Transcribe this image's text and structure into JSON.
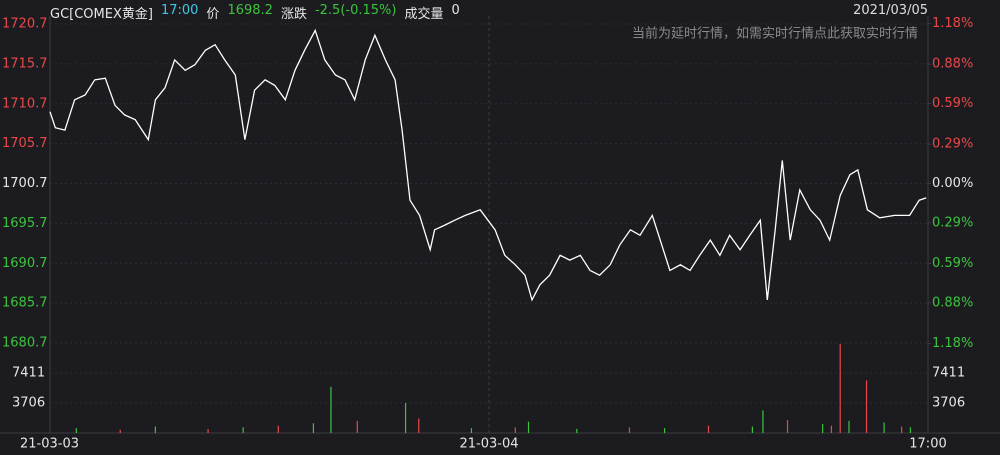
{
  "chart_data": {
    "type": "line",
    "header": [
      {
        "text": "GC[COMEX黄金]",
        "color": "#e6e6e6"
      },
      {
        "text": "17:00",
        "color": "#3ec8e8"
      },
      {
        "text": "价",
        "color": "#e6e6e6"
      },
      {
        "text": "1698.2",
        "color": "#3cc43c"
      },
      {
        "text": "涨跌",
        "color": "#e6e6e6"
      },
      {
        "text": "-2.5(-0.15%)",
        "color": "#3cc43c"
      },
      {
        "text": "成交量",
        "color": "#e6e6e6"
      },
      {
        "text": "0",
        "color": "#e6e6e6"
      }
    ],
    "date": "2021/03/05",
    "notice": "当前为延时行情，如需实时行情点此获取实时行情",
    "color": "#ffffff",
    "x": [
      0,
      0.6,
      1.7,
      2.8,
      4.0,
      5.1,
      6.3,
      7.4,
      8.5,
      9.7,
      11.2,
      12.0,
      13.1,
      14.2,
      15.4,
      16.5,
      17.7,
      18.8,
      19.9,
      21.1,
      22.2,
      23.3,
      24.5,
      25.6,
      26.8,
      27.9,
      29.0,
      30.2,
      31.3,
      32.5,
      33.6,
      34.7,
      35.9,
      37.0,
      38.2,
      39.3,
      40.1,
      41.0,
      42.1,
      43.3,
      43.8,
      45.0,
      46.1,
      47.3,
      49.0,
      50.7,
      51.8,
      53.0,
      54.1,
      54.9,
      55.8,
      56.9,
      58.1,
      59.2,
      60.4,
      61.5,
      62.6,
      63.8,
      64.9,
      66.1,
      67.2,
      68.6,
      69.5,
      70.6,
      71.8,
      72.9,
      74.0,
      75.2,
      76.3,
      77.4,
      78.6,
      79.7,
      80.9,
      81.7,
      82.6,
      83.4,
      84.3,
      85.4,
      86.6,
      87.7,
      88.8,
      90.0,
      91.1,
      92.0,
      93.1,
      94.5,
      96.2,
      97.9,
      99.0,
      99.8
    ],
    "values": [
      1709.7,
      1707.7,
      1707.4,
      1711.2,
      1711.8,
      1713.7,
      1713.9,
      1710.5,
      1709.3,
      1708.7,
      1706.2,
      1711.2,
      1712.7,
      1716.2,
      1714.9,
      1715.6,
      1717.4,
      1718.1,
      1716.2,
      1714.3,
      1706.2,
      1712.4,
      1713.7,
      1713.0,
      1711.2,
      1714.9,
      1717.4,
      1719.9,
      1716.2,
      1714.3,
      1713.7,
      1711.2,
      1716.2,
      1719.3,
      1716.2,
      1713.7,
      1707.4,
      1698.6,
      1696.7,
      1692.4,
      1694.9,
      1695.5,
      1696.1,
      1696.7,
      1697.4,
      1694.9,
      1691.7,
      1690.5,
      1689.2,
      1686.1,
      1688.0,
      1689.2,
      1691.7,
      1691.1,
      1691.7,
      1689.8,
      1689.2,
      1690.5,
      1693.0,
      1694.9,
      1694.2,
      1696.7,
      1693.6,
      1689.8,
      1690.5,
      1689.8,
      1691.7,
      1693.6,
      1691.7,
      1694.2,
      1692.4,
      1694.2,
      1696.1,
      1686.1,
      1694.9,
      1703.6,
      1693.6,
      1699.9,
      1697.4,
      1696.1,
      1693.6,
      1699.2,
      1701.8,
      1702.4,
      1697.4,
      1696.4,
      1696.7,
      1696.7,
      1698.6,
      1698.9
    ],
    "xlim": [
      0,
      100
    ],
    "xticks": [
      {
        "value": 0,
        "label": "21-03-03"
      },
      {
        "value": 50,
        "label": "21-03-04"
      },
      {
        "value": 100,
        "label": "17:00"
      }
    ],
    "ylim": [
      1680.7,
      1720.7
    ],
    "yticks": [
      1720.7,
      1715.7,
      1710.7,
      1705.7,
      1700.7,
      1695.7,
      1690.7,
      1685.7,
      1680.7
    ],
    "y2lim": [
      -1.176,
      1.176
    ],
    "y2ticks": [
      {
        "value": 1.18,
        "label": "1.18%"
      },
      {
        "value": 0.88,
        "label": "0.88%"
      },
      {
        "value": 0.59,
        "label": "0.59%"
      },
      {
        "value": 0.29,
        "label": "0.29%"
      },
      {
        "value": 0,
        "label": "0.00%"
      },
      {
        "value": -0.29,
        "label": "0.29%"
      },
      {
        "value": -0.59,
        "label": "0.59%"
      },
      {
        "value": -0.88,
        "label": "0.88%"
      },
      {
        "value": -1.18,
        "label": "1.18%"
      }
    ],
    "up_color": "#e84848",
    "down_color": "#3cc43c",
    "volume": {
      "x": [
        3,
        8,
        12,
        18,
        22,
        26,
        30,
        32.0,
        35,
        40.5,
        42,
        48,
        53,
        54.5,
        60,
        66,
        70,
        75,
        80,
        81.2,
        84,
        88,
        89,
        90,
        91,
        93,
        95,
        97,
        98
      ],
      "values": [
        600,
        400,
        800,
        500,
        700,
        900,
        1200,
        5700,
        1500,
        3700,
        1800,
        600,
        700,
        1400,
        500,
        700,
        600,
        900,
        800,
        2800,
        1600,
        1100,
        900,
        11000,
        1500,
        6500,
        1300,
        800,
        700
      ],
      "colors": [
        "#3cc43c",
        "#e84848",
        "#3cc43c",
        "#e84848",
        "#3cc43c",
        "#e84848",
        "#3cc43c",
        "#3cc43c",
        "#e84848",
        "#3cc43c",
        "#e84848",
        "#3cc43c",
        "#e84848",
        "#3cc43c",
        "#3cc43c",
        "#e84848",
        "#3cc43c",
        "#e84848",
        "#3cc43c",
        "#3cc43c",
        "#e84848",
        "#3cc43c",
        "#e84848",
        "#e84848",
        "#3cc43c",
        "#e84848",
        "#3cc43c",
        "#e84848",
        "#3cc43c"
      ],
      "ylim": [
        0,
        11117
      ],
      "yticks": [
        7411,
        3706
      ]
    },
    "grid": true
  }
}
